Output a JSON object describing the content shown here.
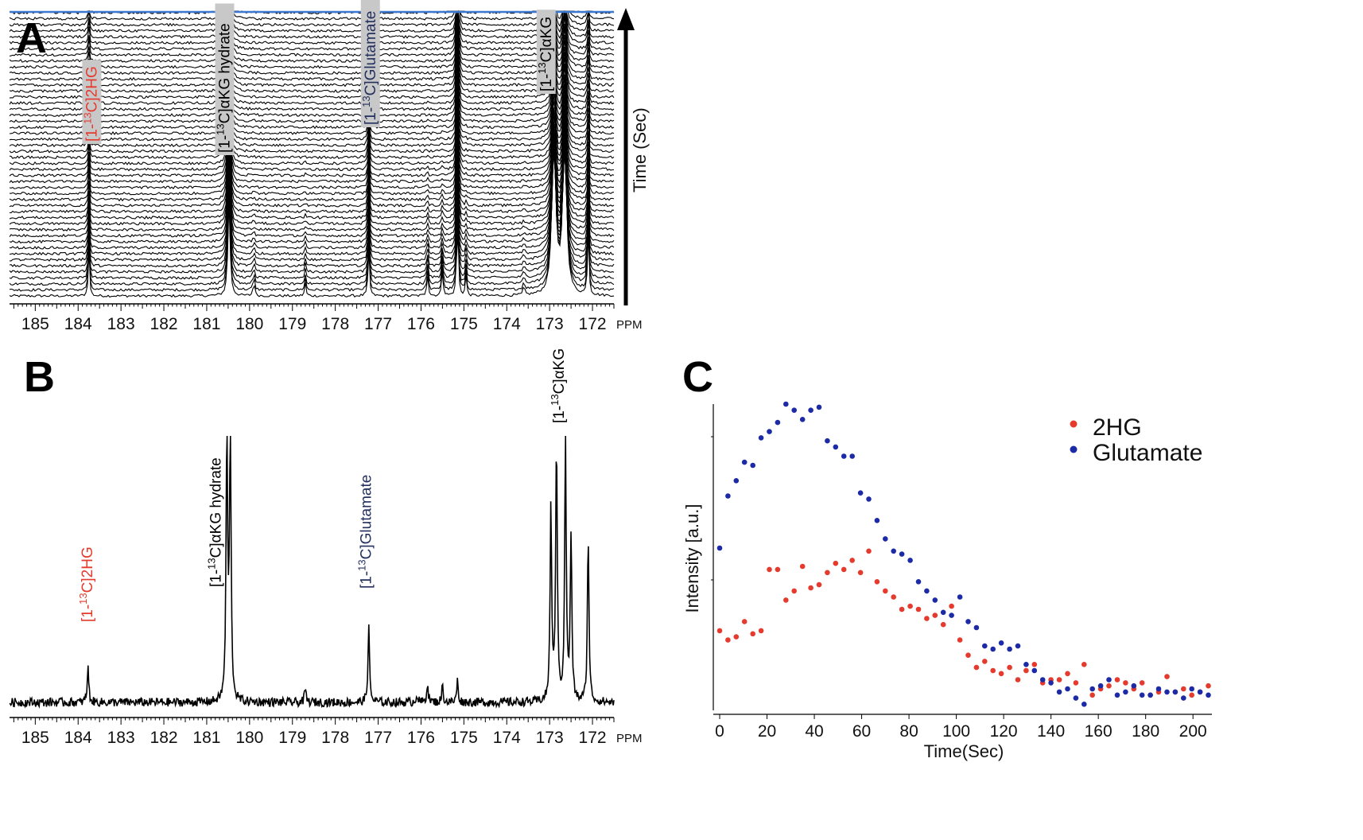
{
  "colors": {
    "red": "#e53a2e",
    "blue": "#1c2aa6",
    "label_navy": "#23305e",
    "label_bg": "#c8c8c8",
    "stack_top_line": "#3b78d4"
  },
  "panel_letters": {
    "a": "A",
    "b": "B",
    "c": "C"
  },
  "chart_data": [
    {
      "panel": "A",
      "type": "line",
      "description_kind": "stacked dynamic 13C NMR spectra",
      "x_ticks": [
        "185",
        "184",
        "183",
        "182",
        "181",
        "180",
        "179",
        "178",
        "177",
        "176",
        "175",
        "174",
        "173",
        "172"
      ],
      "x_tick_values": [
        185,
        184,
        183,
        182,
        181,
        180,
        179,
        178,
        177,
        176,
        175,
        174,
        173,
        172
      ],
      "x_unit": "PPM",
      "xlim": [
        185.6,
        171.5
      ],
      "time_axis_label": "Time (Sec)",
      "n_spectra": 48,
      "peak_labels": [
        {
          "text_pre": "[1-",
          "sup": "13",
          "text_post": "C]2HG",
          "ppm": 183.7,
          "color": "red",
          "boxed": true
        },
        {
          "text_pre": "[1-",
          "sup": "13",
          "text_post": "C]αKG hydrate",
          "ppm": 180.6,
          "color": "black",
          "boxed": true
        },
        {
          "text_pre": "[1-",
          "sup": "13",
          "text_post": "C]Glutamate",
          "ppm": 177.2,
          "color": "navy",
          "boxed": true
        },
        {
          "text_pre": "[1-",
          "sup": "13",
          "text_post": "C]αKG",
          "ppm": 173.1,
          "color": "black",
          "boxed": true
        }
      ],
      "peaks_ppm": [
        183.75,
        180.48,
        179.9,
        178.7,
        177.22,
        175.85,
        175.5,
        175.15,
        174.95,
        173.6,
        172.9,
        172.65,
        172.1
      ]
    },
    {
      "panel": "B",
      "type": "line",
      "description_kind": "summed 13C NMR spectrum",
      "x_ticks": [
        "185",
        "184",
        "183",
        "182",
        "181",
        "180",
        "179",
        "178",
        "177",
        "176",
        "175",
        "174",
        "173",
        "172"
      ],
      "x_tick_values": [
        185,
        184,
        183,
        182,
        181,
        180,
        179,
        178,
        177,
        176,
        175,
        174,
        173,
        172
      ],
      "x_unit": "PPM",
      "xlim": [
        185.6,
        171.5
      ],
      "peak_labels": [
        {
          "text_pre": "[1-",
          "sup": "13",
          "text_post": "C]2HG",
          "ppm": 183.8,
          "color": "red"
        },
        {
          "text_pre": "[1-",
          "sup": "13",
          "text_post": "C]αKG hydrate",
          "ppm": 180.8,
          "color": "black"
        },
        {
          "text_pre": "[1-",
          "sup": "13",
          "text_post": "C]Glutamate",
          "ppm": 177.3,
          "color": "navy"
        },
        {
          "text_pre": "[1-",
          "sup": "13",
          "text_post": "C]αKG",
          "ppm": 172.8,
          "color": "black"
        }
      ],
      "peaks": [
        {
          "ppm": 183.77,
          "height": 0.13
        },
        {
          "ppm": 180.53,
          "height": 1.0
        },
        {
          "ppm": 180.45,
          "height": 1.0
        },
        {
          "ppm": 178.7,
          "height": 0.05
        },
        {
          "ppm": 177.22,
          "height": 0.28
        },
        {
          "ppm": 176.1,
          "height": 0.03
        },
        {
          "ppm": 175.85,
          "height": 0.07
        },
        {
          "ppm": 175.5,
          "height": 0.06
        },
        {
          "ppm": 175.15,
          "height": 0.08
        },
        {
          "ppm": 172.97,
          "height": 0.72
        },
        {
          "ppm": 172.84,
          "height": 0.98
        },
        {
          "ppm": 172.63,
          "height": 0.98
        },
        {
          "ppm": 172.5,
          "height": 0.62
        },
        {
          "ppm": 172.1,
          "height": 0.62
        }
      ]
    },
    {
      "panel": "C",
      "type": "scatter",
      "xlabel": "Time(Sec)",
      "ylabel": "Intensity [a.u.]",
      "x_ticks": [
        "0",
        "20",
        "40",
        "60",
        "80",
        "100",
        "120",
        "140",
        "160",
        "180",
        "200"
      ],
      "x_tick_values": [
        0,
        20,
        40,
        60,
        80,
        100,
        120,
        140,
        160,
        180,
        200
      ],
      "xlim": [
        -3,
        208
      ],
      "ylim": [
        0,
        100
      ],
      "legend_position": "top-right",
      "series": [
        {
          "name": "2HG",
          "color": "red",
          "x": [
            0,
            3.5,
            7,
            10.5,
            14,
            17.5,
            21,
            24.5,
            28,
            31.5,
            35,
            38.5,
            42,
            45.5,
            49,
            52.5,
            56,
            59.5,
            63,
            66.5,
            70,
            73.5,
            77,
            80.5,
            84,
            87.5,
            91,
            94.5,
            98,
            101.5,
            105,
            108.5,
            112,
            115.5,
            119,
            122.5,
            126,
            129.5,
            133,
            136.5,
            140,
            143.5,
            147,
            150.5,
            154,
            157.5,
            161,
            164.5,
            168,
            171.5,
            175,
            178.5,
            182,
            185.5,
            189,
            192.5,
            196,
            199.5,
            203,
            206.5
          ],
          "y": [
            26,
            23,
            24,
            29,
            25,
            26,
            46,
            46,
            36,
            39,
            47,
            40,
            41,
            45,
            48,
            46,
            49,
            45,
            52,
            42,
            39,
            37,
            33,
            34,
            33,
            30,
            31,
            28,
            34,
            23,
            18,
            14,
            16,
            13,
            12,
            14,
            10,
            13,
            15,
            9,
            10,
            10,
            12,
            9,
            15,
            5,
            7,
            8,
            10,
            9,
            7,
            9,
            5,
            6,
            11,
            6,
            7,
            5,
            6,
            8
          ]
        },
        {
          "name": "Glutamate",
          "color": "blue",
          "x": [
            0,
            3.5,
            7,
            10.5,
            14,
            17.5,
            21,
            24.5,
            28,
            31.5,
            35,
            38.5,
            42,
            45.5,
            49,
            52.5,
            56,
            59.5,
            63,
            66.5,
            70,
            73.5,
            77,
            80.5,
            84,
            87.5,
            91,
            94.5,
            98,
            101.5,
            105,
            108.5,
            112,
            115.5,
            119,
            122.5,
            126,
            129.5,
            133,
            136.5,
            140,
            143.5,
            147,
            150.5,
            154,
            157.5,
            161,
            164.5,
            168,
            171.5,
            175,
            178.5,
            182,
            185.5,
            189,
            192.5,
            196,
            199.5,
            203,
            206.5
          ],
          "y": [
            53,
            70,
            75,
            81,
            80,
            89,
            91,
            94,
            100,
            98,
            95,
            98,
            99,
            88,
            86,
            83,
            83,
            71,
            69,
            62,
            56,
            52,
            51,
            49,
            42,
            39,
            36,
            32,
            31,
            37,
            29,
            27,
            21,
            20,
            22,
            20,
            21,
            15,
            13,
            10,
            9,
            6,
            7,
            4,
            2,
            7,
            8,
            10,
            5,
            6,
            8,
            5,
            5,
            7,
            6,
            6,
            4,
            7,
            6,
            5
          ]
        }
      ]
    }
  ]
}
